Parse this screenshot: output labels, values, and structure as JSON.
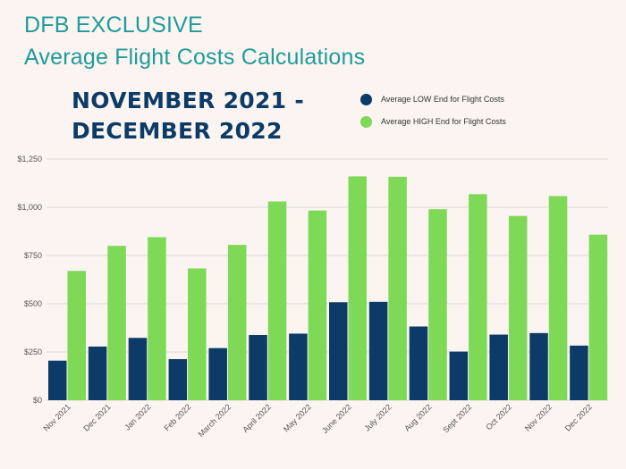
{
  "header": {
    "title_line1": "DFB EXCLUSIVE",
    "title_line2": "Average Flight Costs Calculations",
    "period_line1": "NOVEMBER 2021 -",
    "period_line2": "DECEMBER 2022"
  },
  "colors": {
    "low": "#0b3b66",
    "high": "#7ed957",
    "title": "#1f9c9a",
    "grid": "#d9d9d9"
  },
  "chart_data": {
    "type": "bar",
    "title": "Average Flight Costs Calculations",
    "xlabel": "",
    "ylabel": "",
    "ylim": [
      0,
      1250
    ],
    "yticks": [
      0,
      250,
      500,
      750,
      1000,
      1250
    ],
    "ytick_labels": [
      "$0",
      "$250",
      "$500",
      "$750",
      "$1,000",
      "$1,250"
    ],
    "grid": true,
    "legend_position": "top-right",
    "categories": [
      "Nov 2021",
      "Dec 2021",
      "Jan 2022",
      "Feb 2022",
      "March 2022",
      "April 2022",
      "May 2022",
      "June 2022",
      "July 2022",
      "Aug 2022",
      "Sept 2022",
      "Oct 2022",
      "Nov 2022",
      "Dec 2022"
    ],
    "series": [
      {
        "name": "Average LOW End for Flight Costs",
        "color": "#0b3b66",
        "values": [
          205,
          278,
          323,
          213,
          270,
          338,
          345,
          508,
          510,
          382,
          252,
          340,
          348,
          283
        ]
      },
      {
        "name": "Average HIGH End for Flight Costs",
        "color": "#7ed957",
        "values": [
          670,
          800,
          845,
          683,
          805,
          1030,
          983,
          1160,
          1158,
          990,
          1068,
          955,
          1058,
          858
        ]
      }
    ]
  }
}
